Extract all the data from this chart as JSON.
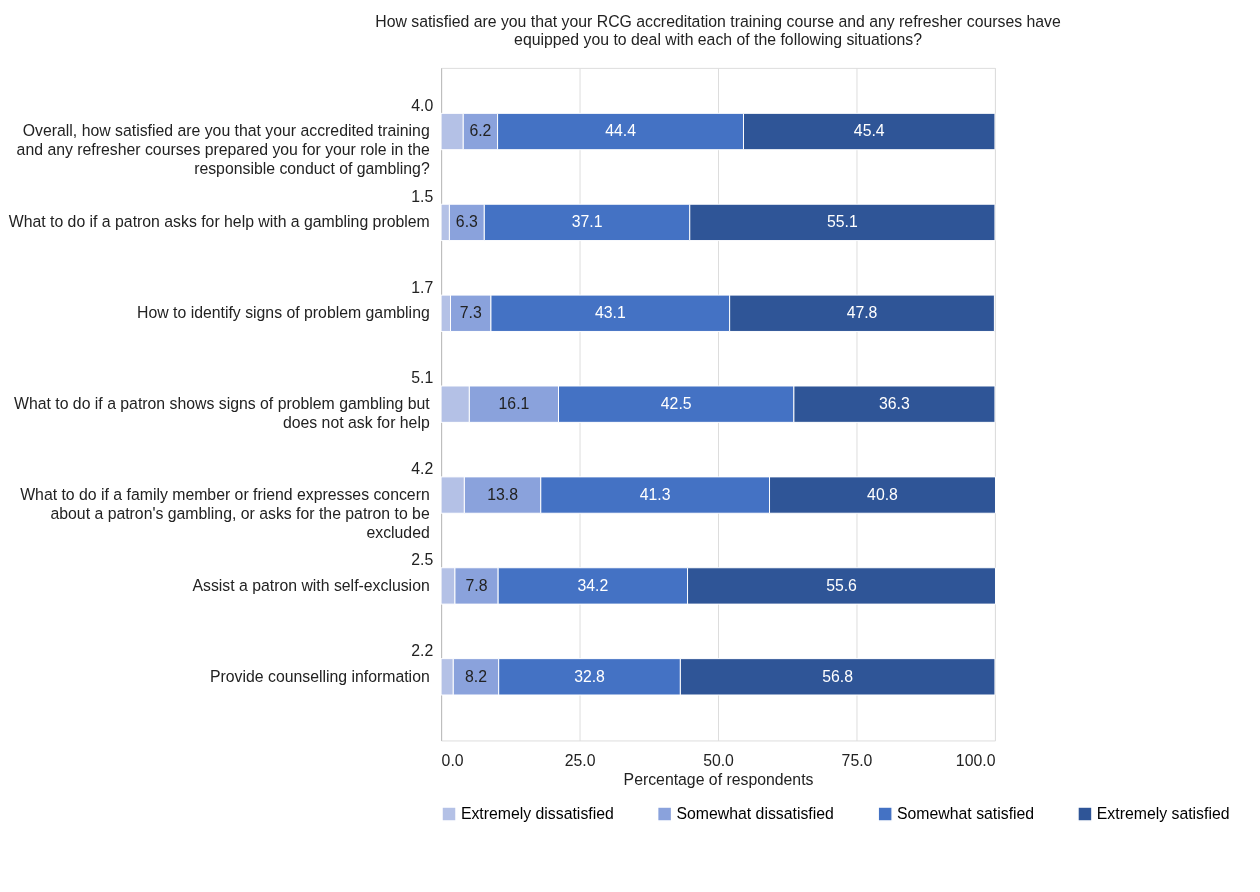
{
  "chart_data": {
    "type": "bar",
    "orientation": "horizontal",
    "stacked": true,
    "title": "How satisfied are you that your RCG accreditation training course and any refresher courses have equipped you to deal with each of the following situations?",
    "xlabel": "Percentage of respondents",
    "categories": [
      "Overall, how satisfied are you that your accredited training and any refresher courses prepared you for your role in the responsible conduct of gambling?",
      "What to do if a patron asks for help with a gambling problem",
      "How to identify signs of problem gambling",
      "What to do if a patron shows signs of problem gambling but does not ask for help",
      "What to do if a family member or friend expresses concern about a patron's gambling, or asks for the patron to be excluded",
      "Assist a patron with self-exclusion",
      "Provide counselling information"
    ],
    "series": [
      {
        "name": "Extremely dissatisfied",
        "color": "#b4c1e6",
        "values": [
          4.0,
          1.5,
          1.7,
          5.1,
          4.2,
          2.5,
          2.2
        ],
        "value_labels": [
          "4.0",
          "1.5",
          "1.7",
          "5.1",
          "4.2",
          "2.5",
          "2.2"
        ]
      },
      {
        "name": "Somewhat dissatisfied",
        "color": "#8aa2dc",
        "values": [
          6.2,
          6.3,
          7.3,
          16.1,
          13.8,
          7.8,
          8.2
        ],
        "value_labels": [
          "6.2",
          "6.3",
          "7.3",
          "16.1",
          "13.8",
          "7.8",
          "8.2"
        ]
      },
      {
        "name": "Somewhat satisfied",
        "color": "#4472c4",
        "values": [
          44.4,
          37.1,
          43.1,
          42.5,
          41.3,
          34.2,
          32.8
        ],
        "value_labels": [
          "44.4",
          "37.1",
          "43.1",
          "42.5",
          "41.3",
          "34.2",
          "32.8"
        ]
      },
      {
        "name": "Extremely satisfied",
        "color": "#2f5597",
        "values": [
          45.4,
          55.1,
          47.8,
          36.3,
          40.8,
          55.6,
          56.8
        ],
        "value_labels": [
          "45.4",
          "55.1",
          "47.8",
          "36.3",
          "40.8",
          "55.6",
          "56.8"
        ]
      }
    ],
    "xlim": [
      0,
      100
    ],
    "xticks": [
      {
        "value": 0,
        "label": "0.0"
      },
      {
        "value": 25,
        "label": "25.0"
      },
      {
        "value": 50,
        "label": "50.0"
      },
      {
        "value": 75,
        "label": "75.0"
      },
      {
        "value": 100,
        "label": "100.0"
      }
    ],
    "grid": "x",
    "legend": "bottom"
  }
}
